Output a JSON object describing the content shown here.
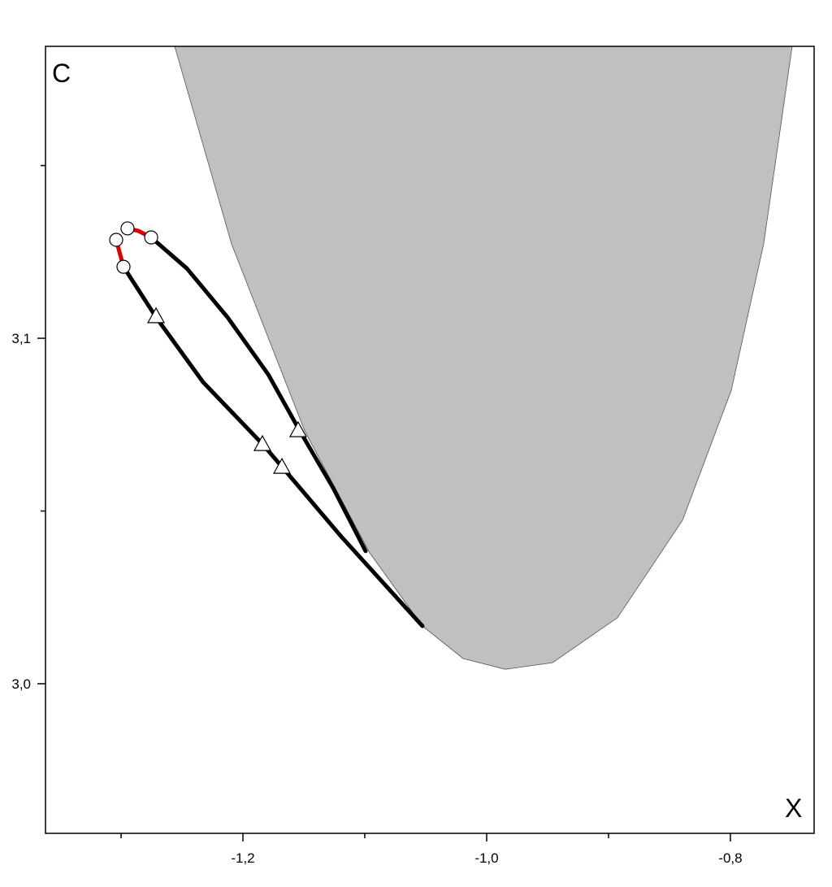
{
  "chart_data": {
    "type": "line",
    "annotations": [
      "C",
      "X"
    ],
    "xlim": [
      -1.362,
      -0.7313
    ],
    "ylim": [
      2.9567,
      3.1845
    ],
    "xticks": [
      {
        "value": -1.2,
        "label": "-1,2"
      },
      {
        "value": -1.0,
        "label": "-1,0"
      },
      {
        "value": -0.8,
        "label": "-0,8"
      }
    ],
    "xminorticks": [
      -1.3,
      -1.1,
      -0.9
    ],
    "yticks": [
      {
        "value": 3.0,
        "label": "3,0"
      },
      {
        "value": 3.1,
        "label": "3,1"
      }
    ],
    "yminorticks": [
      3.05,
      3.15
    ],
    "series": [
      {
        "style": "fill",
        "color": "#c0c0c0",
        "x": [
          -1.256,
          -1.2093,
          -1.1493,
          -1.096,
          -1.0527,
          -1.0193,
          -0.9847,
          -0.946,
          -0.8927,
          -0.8393,
          -0.7993,
          -0.7727,
          -0.7493
        ],
        "y": [
          3.1845,
          3.1273,
          3.0732,
          3.0379,
          3.0167,
          3.0073,
          3.0042,
          3.0061,
          3.0191,
          3.0473,
          3.0849,
          3.1273,
          3.1845
        ]
      },
      {
        "style": "line",
        "color": "#000000",
        "x": [
          -1.2753,
          -1.246,
          -1.2127,
          -1.1793,
          -1.154,
          -1.126,
          -1.0993
        ],
        "y": [
          3.1292,
          3.1202,
          3.1061,
          3.0896,
          3.0736,
          3.0567,
          3.0384
        ]
      },
      {
        "style": "line",
        "color": "#000000",
        "x": [
          -1.298,
          -1.2713,
          -1.2327,
          -1.184,
          -1.168,
          -1.1193,
          -1.0527
        ],
        "y": [
          3.1207,
          3.1061,
          3.0873,
          3.0694,
          3.0628,
          3.0426,
          3.0167
        ]
      },
      {
        "style": "line",
        "color": "#e00000",
        "x": [
          -1.304,
          -1.3013,
          -1.298
        ],
        "y": [
          3.1285,
          3.125,
          3.1207
        ]
      },
      {
        "style": "line",
        "color": "#e00000",
        "x": [
          -1.2947,
          -1.286,
          -1.2753
        ],
        "y": [
          3.1318,
          3.1311,
          3.1292
        ]
      },
      {
        "style": "marker",
        "marker": "circle",
        "color": "#ffffff",
        "x": [
          -1.2947,
          -1.304,
          -1.2753,
          -1.298
        ],
        "y": [
          3.1318,
          3.1285,
          3.1292,
          3.1207
        ]
      },
      {
        "style": "marker",
        "marker": "triangle",
        "color": "#ffffff",
        "x": [
          -1.2713,
          -1.1547,
          -1.184,
          -1.168
        ],
        "y": [
          3.1064,
          3.0734,
          3.0694,
          3.0628
        ]
      }
    ]
  }
}
